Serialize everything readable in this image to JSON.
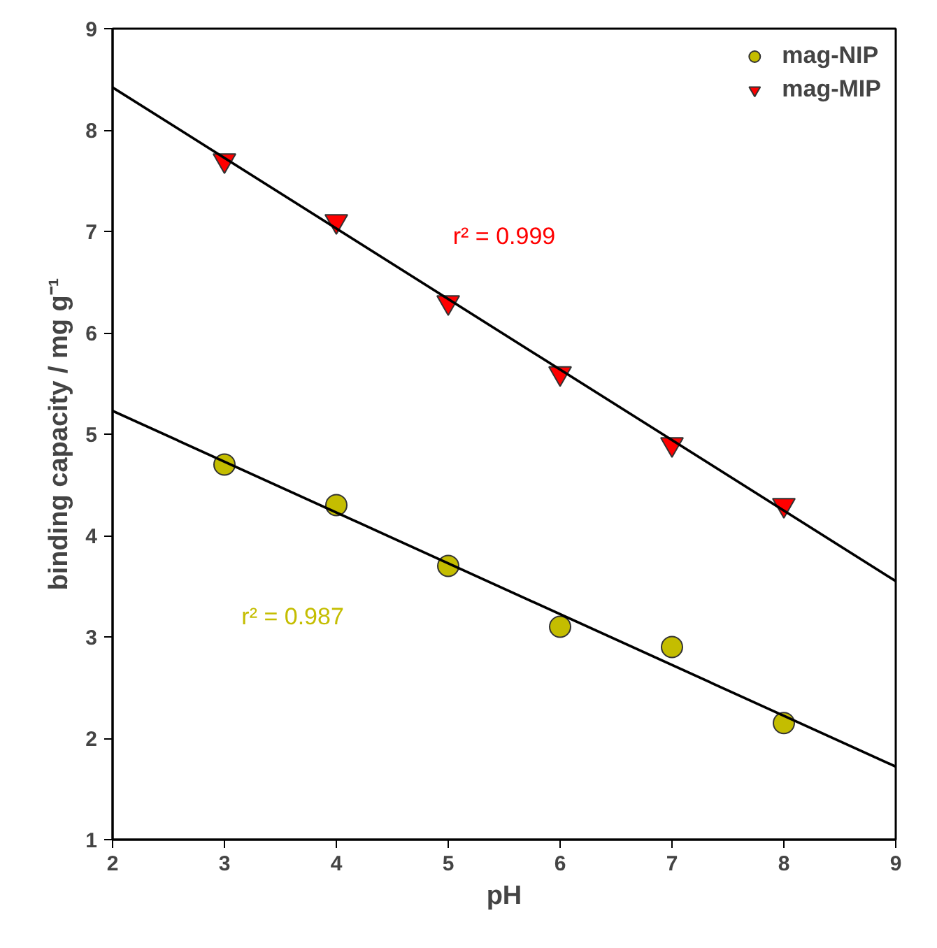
{
  "chart_data": {
    "type": "scatter",
    "xlabel": "pH",
    "ylabel": "binding capacity / mg g⁻¹",
    "xlim": [
      2,
      9
    ],
    "ylim": [
      1,
      9
    ],
    "xticks": [
      2,
      3,
      4,
      5,
      6,
      7,
      8,
      9
    ],
    "yticks": [
      1,
      2,
      3,
      4,
      5,
      6,
      7,
      8,
      9
    ],
    "grid": false,
    "legend": "top right",
    "series": [
      {
        "name": "mag-NIP",
        "marker": "circle",
        "color": "#c4bd00",
        "x": [
          3,
          4,
          5,
          6,
          7,
          8
        ],
        "values": [
          4.7,
          4.3,
          3.7,
          3.1,
          2.9,
          2.15
        ]
      },
      {
        "name": "mag-MIP",
        "marker": "triangle",
        "color": "#ff0000",
        "x": [
          3,
          4,
          5,
          6,
          7,
          8
        ],
        "values": [
          7.7,
          7.1,
          6.3,
          5.6,
          4.9,
          4.3
        ]
      },
      {
        "type": "line",
        "color": "#000000",
        "x": [
          2,
          9
        ],
        "values": [
          5.23,
          1.72
        ]
      },
      {
        "type": "line",
        "color": "#000000",
        "x": [
          2,
          9
        ],
        "values": [
          8.42,
          3.55
        ]
      }
    ],
    "annotations": [
      "r² = 0.987",
      "r² = 0.999"
    ]
  }
}
